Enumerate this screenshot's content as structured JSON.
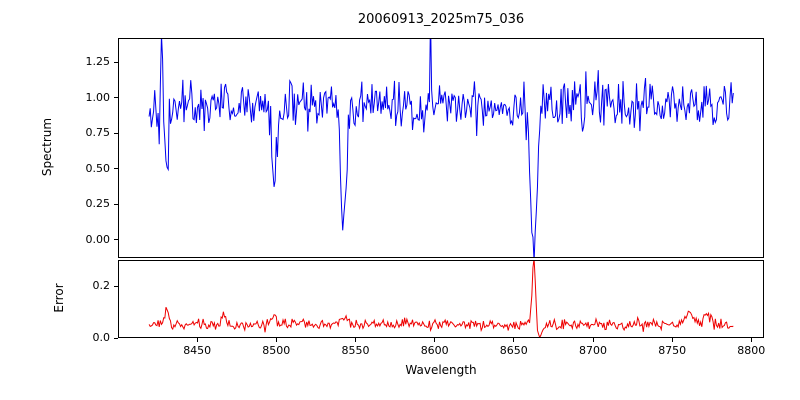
{
  "chart_data": {
    "type": "line",
    "title": "20060913_2025m75_036",
    "xlabel": "Wavelength",
    "xlim": [
      8400,
      8808
    ],
    "x_ticks": [
      8450,
      8500,
      8550,
      8600,
      8650,
      8700,
      8750,
      8800
    ],
    "data_x_range": [
      8419,
      8788
    ],
    "n_points": 520,
    "seed": 42,
    "grid": false,
    "legend": false,
    "panels": [
      {
        "name": "spectrum",
        "ylabel": "Spectrum",
        "ylim": [
          -0.13,
          1.42
        ],
        "y_ticks": [
          {
            "value": 0.0,
            "label": "0.00"
          },
          {
            "value": 0.25,
            "label": "0.25"
          },
          {
            "value": 0.5,
            "label": "0.50"
          },
          {
            "value": 0.75,
            "label": "0.75"
          },
          {
            "value": 1.0,
            "label": "1.00"
          },
          {
            "value": 1.25,
            "label": "1.25"
          }
        ],
        "color": "#0000ee",
        "continuum": 0.955,
        "noise_sigma": 0.085,
        "features": [
          {
            "center": 8430,
            "height": -0.5,
            "width": 1.2
          },
          {
            "center": 8498,
            "height": -0.55,
            "width": 1.6
          },
          {
            "center": 8542,
            "height": -0.88,
            "width": 1.8
          },
          {
            "center": 8662,
            "height": -1.02,
            "width": 1.9
          },
          {
            "center": 8427,
            "height": 0.45,
            "width": 0.5
          },
          {
            "center": 8597,
            "height": 0.46,
            "width": 0.5
          }
        ]
      },
      {
        "name": "error",
        "ylabel": "Error",
        "ylim": [
          0,
          0.3
        ],
        "y_ticks": [
          {
            "value": 0.0,
            "label": "0.0"
          },
          {
            "value": 0.2,
            "label": "0.2"
          }
        ],
        "color": "#ee0000",
        "baseline": 0.055,
        "noise_sigma": 0.01,
        "clamp_min": 0.004,
        "features": [
          {
            "center": 8430,
            "height": 0.06,
            "width": 1.2
          },
          {
            "center": 8466,
            "height": 0.03,
            "width": 1.5
          },
          {
            "center": 8498,
            "height": 0.035,
            "width": 1.6
          },
          {
            "center": 8542,
            "height": 0.03,
            "width": 1.8
          },
          {
            "center": 8662,
            "height": 0.25,
            "width": 1.0
          },
          {
            "center": 8666,
            "height": -0.05,
            "width": 1.2
          },
          {
            "center": 8760,
            "height": 0.045,
            "width": 2.5
          },
          {
            "center": 8772,
            "height": 0.04,
            "width": 2.0
          }
        ]
      }
    ]
  }
}
